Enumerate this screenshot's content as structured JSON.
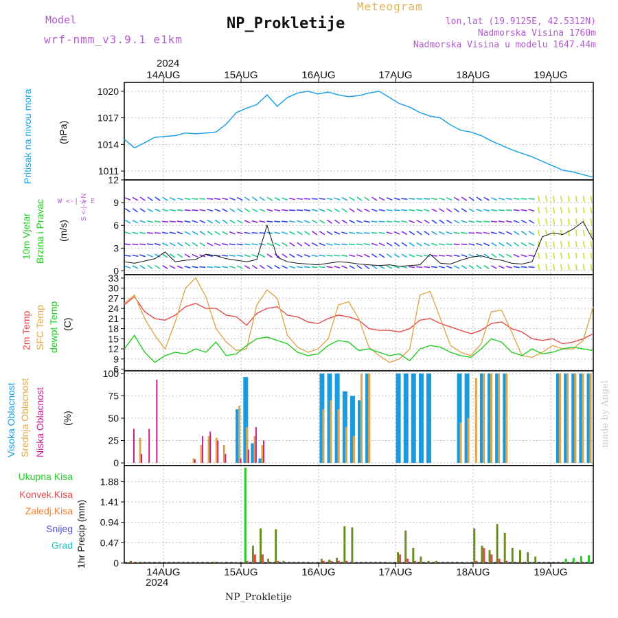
{
  "header": {
    "model_label": "Model",
    "model_name": "wrf-nmm_v3.9.1 e1km",
    "station_title": "NP_Prokletije",
    "meteogram_label": "Meteogram",
    "coords": "lon,lat (19.9125E, 42.5312N)",
    "elevation": "Nadmorska Visina 1760m",
    "model_elevation": "Nadmorska Visina u modelu 1647.44m",
    "year_top": "2024",
    "year_bottom": "2024",
    "footer_station": "NP_Prokletije",
    "credit": "made by Angel"
  },
  "colors": {
    "pressure": "#1fa2e8",
    "temp2m": "#e84a4a",
    "sfc_temp": "#e0a64a",
    "dewpoint": "#22cc22",
    "high_cloud": "#1a9be0",
    "mid_cloud": "#e0a64a",
    "low_cloud": "#cc1f8c",
    "total_precip": "#22cc22",
    "conv_precip": "#e84a4a",
    "strat_precip": "#f07e2a",
    "snow": "#5050dd",
    "hail": "#22c0c0",
    "grid": "#bbbbbb"
  },
  "chart_data": [
    {
      "type": "line",
      "panel": "pressure",
      "ylabel_main": "Pritisak na nivou mora",
      "unit": "(hPa)",
      "ylim": [
        1010,
        1021
      ],
      "yticks": [
        "1020",
        "1017",
        "1014",
        "1011"
      ],
      "ytick_values": [
        1020,
        1017,
        1014,
        1011
      ],
      "xticks": [
        "14AUG",
        "15AUG",
        "16AUG",
        "17AUG",
        "18AUG",
        "19AUG"
      ],
      "x_hours": [
        0,
        3,
        6,
        9,
        12,
        15,
        18,
        21,
        24,
        27,
        30,
        33,
        36,
        39,
        42,
        45,
        48,
        51,
        54,
        57,
        60,
        63,
        66,
        69,
        72,
        75,
        78,
        81,
        84,
        87,
        90,
        93,
        96,
        99,
        102,
        105,
        108,
        111,
        114,
        117,
        120,
        123,
        126,
        129,
        132,
        135,
        138
      ],
      "series": [
        {
          "values": [
            1014.6,
            1013.6,
            1014.2,
            1014.8,
            1014.9,
            1015.0,
            1015.3,
            1015.2,
            1015.3,
            1015.4,
            1016.3,
            1017.6,
            1018.1,
            1018.5,
            1019.6,
            1018.3,
            1019.3,
            1019.8,
            1020.0,
            1019.7,
            1019.9,
            1019.6,
            1019.4,
            1019.5,
            1019.8,
            1020.0,
            1019.3,
            1018.6,
            1018.2,
            1017.6,
            1017.2,
            1017.0,
            1016.2,
            1015.6,
            1015.4,
            1015.0,
            1014.4,
            1013.9,
            1013.4,
            1013.0,
            1012.6,
            1012.1,
            1011.6,
            1011.1,
            1010.9,
            1010.6,
            1010.3
          ]
        }
      ]
    },
    {
      "type": "line",
      "panel": "wind",
      "ylabel_main": "10m Vjetar",
      "ylabel_sub": "Brzina i Pravac",
      "unit": "(m/s)",
      "compass": "W <-|-> E",
      "compass_v": "S <-|-> N",
      "ylim": [
        -0.5,
        12
      ],
      "yticks": [
        "12",
        "9",
        "6",
        "3",
        "0"
      ],
      "ytick_values": [
        12,
        9,
        6,
        3,
        0
      ],
      "series": [
        {
          "name": "speed",
          "values": [
            1.2,
            1.0,
            1.3,
            1.6,
            2.5,
            1.2,
            1.4,
            1.5,
            2.2,
            2.0,
            1.6,
            1.4,
            1.2,
            1.5,
            6.0,
            1.8,
            1.2,
            1.0,
            0.9,
            0.8,
            1.0,
            1.2,
            1.1,
            0.9,
            0.8,
            0.7,
            0.8,
            0.6,
            0.7,
            0.8,
            2.2,
            1.0,
            0.9,
            1.4,
            1.8,
            2.0,
            1.6,
            1.4,
            1.0,
            0.9,
            1.2,
            4.5,
            5.0,
            4.8,
            5.5,
            6.5,
            4.0
          ]
        }
      ]
    },
    {
      "type": "line",
      "panel": "temperature",
      "ylabel_series": [
        "2m Temp",
        "SFC Temp",
        "dewpt Temp"
      ],
      "unit": "(C)",
      "ylim": [
        5.5,
        34
      ],
      "yticks": [
        "33",
        "30",
        "27",
        "24",
        "21",
        "18",
        "15",
        "12",
        "9",
        "6"
      ],
      "ytick_values": [
        33,
        30,
        27,
        24,
        21,
        18,
        15,
        12,
        9,
        6
      ],
      "series": [
        {
          "name": "2m Temp",
          "values": [
            25.0,
            27.5,
            23.0,
            21.0,
            20.5,
            22.0,
            24.5,
            25.5,
            24.0,
            24.0,
            22.0,
            21.5,
            19.0,
            22.5,
            24.0,
            24.5,
            22.0,
            21.5,
            20.0,
            19.5,
            21.0,
            22.0,
            21.5,
            20.5,
            18.0,
            17.5,
            17.5,
            17.0,
            18.0,
            20.5,
            21.0,
            19.5,
            18.5,
            17.5,
            16.5,
            17.5,
            19.5,
            20.0,
            18.0,
            17.0,
            15.0,
            14.5,
            15.0,
            13.5,
            14.0,
            15.0,
            16.5
          ]
        },
        {
          "name": "SFC Temp",
          "values": [
            25.5,
            28.0,
            21.0,
            16.0,
            12.0,
            20.0,
            30.0,
            33.0,
            27.5,
            18.0,
            14.0,
            11.5,
            12.0,
            25.0,
            29.5,
            27.0,
            16.0,
            12.5,
            11.0,
            12.0,
            15.0,
            25.0,
            26.0,
            21.0,
            12.5,
            10.0,
            8.0,
            9.0,
            12.0,
            28.0,
            29.0,
            21.0,
            13.0,
            11.0,
            10.0,
            13.5,
            23.0,
            23.5,
            17.0,
            10.0,
            9.5,
            11.0,
            13.0,
            12.0,
            12.0,
            14.5,
            24.5
          ]
        },
        {
          "name": "dewpt Temp",
          "values": [
            12.0,
            16.0,
            11.0,
            8.0,
            10.0,
            11.0,
            10.5,
            12.0,
            11.0,
            14.0,
            10.0,
            10.5,
            13.0,
            15.0,
            15.5,
            14.5,
            13.5,
            11.0,
            10.0,
            10.5,
            13.0,
            14.5,
            14.0,
            11.5,
            12.0,
            11.0,
            10.0,
            10.5,
            8.5,
            12.0,
            13.0,
            12.5,
            11.0,
            10.0,
            9.5,
            12.0,
            15.0,
            14.0,
            11.0,
            10.0,
            12.0,
            10.5,
            11.0,
            12.0,
            12.5,
            12.0,
            11.5
          ]
        }
      ]
    },
    {
      "type": "bar",
      "panel": "cloud",
      "ylabel_series": [
        "Visoka Oblacnost",
        "Srednja Oblacnost",
        "Niska Oblacnost"
      ],
      "unit": "(%)",
      "ylim": [
        -3,
        103
      ],
      "yticks": [
        "100",
        "75",
        "50",
        "25",
        "0"
      ],
      "ytick_values": [
        100,
        75,
        50,
        25,
        0
      ],
      "series": [
        {
          "name": "Visoka Oblacnost",
          "values": [
            0,
            0,
            0,
            0,
            0,
            0,
            0,
            0,
            0,
            0,
            0,
            0,
            0,
            0,
            60,
            96,
            22,
            5,
            0,
            0,
            0,
            0,
            0,
            0,
            0,
            100,
            100,
            100,
            80,
            75,
            70,
            100,
            0,
            0,
            0,
            100,
            100,
            100,
            100,
            100,
            0,
            0,
            0,
            100,
            100,
            0,
            100,
            100,
            100,
            100,
            0,
            0,
            0,
            0,
            0,
            0,
            100,
            100,
            100,
            100,
            100
          ]
        },
        {
          "name": "Srednja Oblacnost",
          "values": [
            0,
            28,
            0,
            0,
            0,
            0,
            0,
            0,
            5,
            20,
            30,
            28,
            20,
            0,
            64,
            40,
            30,
            20,
            0,
            0,
            0,
            0,
            0,
            0,
            0,
            60,
            70,
            60,
            40,
            30,
            100,
            100,
            0,
            0,
            0,
            0,
            0,
            0,
            0,
            0,
            0,
            0,
            0,
            45,
            50,
            95,
            100,
            100,
            100,
            100,
            0,
            0,
            0,
            0,
            0,
            0,
            100,
            100,
            100,
            100,
            100
          ]
        },
        {
          "name": "Niska Oblacnost",
          "values": [
            38,
            10,
            38,
            93,
            0,
            0,
            0,
            0,
            4,
            30,
            35,
            25,
            10,
            0,
            5,
            15,
            40,
            25,
            0,
            0,
            0,
            0,
            0,
            0,
            0,
            0,
            0,
            0,
            0,
            0,
            0,
            0,
            0,
            0,
            0,
            0,
            0,
            0,
            0,
            0,
            0,
            0,
            0,
            0,
            0,
            0,
            0,
            0,
            0,
            0,
            0,
            0,
            0,
            0,
            0,
            0,
            0,
            0,
            0,
            0,
            0
          ]
        }
      ]
    },
    {
      "type": "bar",
      "panel": "precip",
      "ylabel_series": [
        "Ukupna Kisa",
        "Konvek.Kisa",
        "Zaledj.Kisa",
        "Snijeg",
        "Grad"
      ],
      "unit": "1hr Precip (mm)",
      "ylim": [
        0,
        2.25
      ],
      "yticks": [
        "1.88",
        "1.41",
        "0.94",
        "0.47",
        "0"
      ],
      "ytick_values": [
        1.88,
        1.41,
        0.94,
        0.47,
        0
      ],
      "series": [
        {
          "name": "Ukupna Kisa",
          "values": [
            0.05,
            0.02,
            0,
            0,
            0,
            0,
            0,
            0,
            0,
            0,
            0,
            0.03,
            0.02,
            0,
            0.02,
            2.2,
            0.4,
            0.8,
            0.1,
            0.78,
            0.05,
            0,
            0,
            0,
            0.02,
            0.1,
            0.08,
            0.12,
            0.85,
            0.82,
            0,
            0,
            0,
            0,
            0.02,
            0.25,
            0.75,
            0.35,
            0.15,
            0.05,
            0.05,
            0,
            0,
            0,
            0.02,
            0.8,
            0.4,
            0.3,
            0.9,
            0.7,
            0.35,
            0.3,
            0.25,
            0.15,
            0,
            0,
            0,
            0.1,
            0.12,
            0.16,
            0.18
          ]
        },
        {
          "name": "Konvek.Kisa",
          "values": [
            0.02,
            0,
            0,
            0,
            0,
            0,
            0,
            0,
            0,
            0,
            0,
            0,
            0,
            0,
            0,
            0.05,
            0.2,
            0.2,
            0,
            0.05,
            0,
            0,
            0,
            0,
            0,
            0.05,
            0.05,
            0.05,
            0.05,
            0,
            0,
            0,
            0,
            0,
            0,
            0.2,
            0.1,
            0.05,
            0,
            0,
            0,
            0,
            0,
            0,
            0,
            0.05,
            0.35,
            0.2,
            0.1,
            0.05,
            0,
            0,
            0,
            0,
            0,
            0,
            0,
            0,
            0,
            0,
            0
          ]
        }
      ]
    }
  ]
}
